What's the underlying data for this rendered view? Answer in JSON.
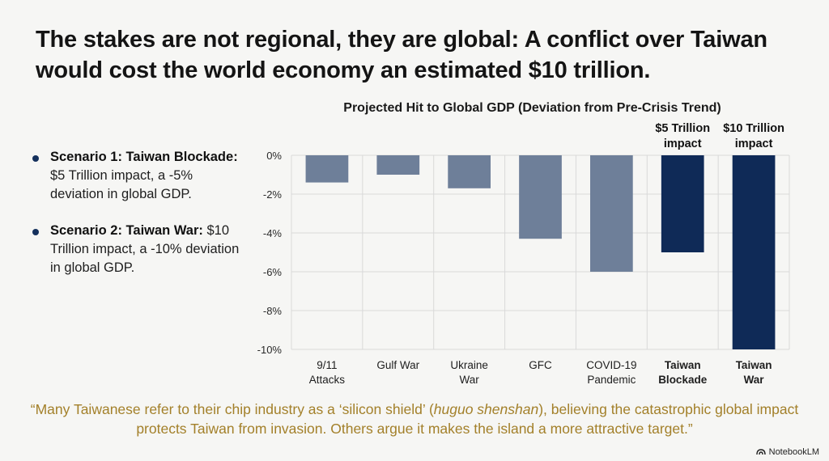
{
  "headline": "The stakes are not regional, they are global: A conflict over Taiwan would cost the world economy an estimated $10 trillion.",
  "bullets": [
    {
      "bold": "Scenario 1: Taiwan Blockade:",
      "text": " $5 Trillion impact, a -5% deviation in global GDP."
    },
    {
      "bold": "Scenario 2: Taiwan War:",
      "text": " $10 Trillion impact, a -10% deviation in global GDP."
    }
  ],
  "chart_data": {
    "type": "bar",
    "title": "Projected Hit to Global GDP (Deviation from Pre-Crisis Trend)",
    "xlabel": "",
    "ylabel": "",
    "ylim": [
      -10,
      0
    ],
    "yticks": [
      "0%",
      "-2%",
      "-4%",
      "-6%",
      "-8%",
      "-10%"
    ],
    "ytick_values": [
      0,
      -2,
      -4,
      -6,
      -8,
      -10
    ],
    "grid": true,
    "categories": [
      [
        "9/11",
        "Attacks"
      ],
      [
        "Gulf War"
      ],
      [
        "Ukraine",
        "War"
      ],
      [
        "GFC"
      ],
      [
        "COVID-19",
        "Pandemic"
      ],
      [
        "Taiwan",
        "Blockade"
      ],
      [
        "Taiwan",
        "War"
      ]
    ],
    "values": [
      -1.4,
      -1.0,
      -1.7,
      -4.3,
      -6.0,
      -5.0,
      -10.0
    ],
    "highlight": [
      false,
      false,
      false,
      false,
      false,
      true,
      true
    ],
    "annotations": [
      {
        "category_index": 5,
        "lines": [
          "$5 Trillion",
          "impact"
        ]
      },
      {
        "category_index": 6,
        "lines": [
          "$10 Trillion",
          "impact"
        ]
      }
    ],
    "colors": {
      "normal": "#6e7f99",
      "highlight": "#0f2a57",
      "grid": "#d9d9d9"
    }
  },
  "quote": "“Many Taiwanese refer to their chip industry as a ‘silicon shield’ (huguo shenshan), believing the catastrophic global impact protects Taiwan from invasion. Others argue it makes the island a more attractive target.”",
  "quote_parts": {
    "pre": "“Many Taiwanese refer to their chip industry as a ‘silicon shield’ (",
    "italic": "huguo shenshan",
    "post": "), believing the catastrophic global impact protects Taiwan from invasion. Others argue it makes the island a more attractive target.”"
  },
  "brand": "NotebookLM"
}
